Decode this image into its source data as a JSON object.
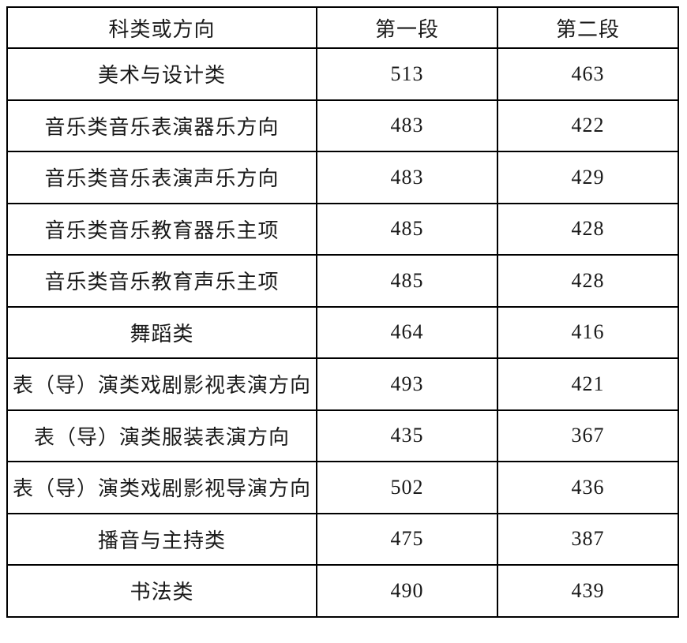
{
  "table": {
    "headers": {
      "category": "科类或方向",
      "seg1": "第一段",
      "seg2": "第二段"
    },
    "rows": [
      {
        "category": "美术与设计类",
        "seg1": "513",
        "seg2": "463"
      },
      {
        "category": "音乐类音乐表演器乐方向",
        "seg1": "483",
        "seg2": "422"
      },
      {
        "category": "音乐类音乐表演声乐方向",
        "seg1": "483",
        "seg2": "429"
      },
      {
        "category": "音乐类音乐教育器乐主项",
        "seg1": "485",
        "seg2": "428"
      },
      {
        "category": "音乐类音乐教育声乐主项",
        "seg1": "485",
        "seg2": "428"
      },
      {
        "category": "舞蹈类",
        "seg1": "464",
        "seg2": "416"
      },
      {
        "category": "表（导）演类戏剧影视表演方向",
        "seg1": "493",
        "seg2": "421"
      },
      {
        "category": "表（导）演类服装表演方向",
        "seg1": "435",
        "seg2": "367"
      },
      {
        "category": "表（导）演类戏剧影视导演方向",
        "seg1": "502",
        "seg2": "436"
      },
      {
        "category": "播音与主持类",
        "seg1": "475",
        "seg2": "387"
      },
      {
        "category": "书法类",
        "seg1": "490",
        "seg2": "439"
      }
    ]
  },
  "chart_data": {
    "type": "table",
    "title": "",
    "columns": [
      "科类或方向",
      "第一段",
      "第二段"
    ],
    "rows": [
      [
        "美术与设计类",
        513,
        463
      ],
      [
        "音乐类音乐表演器乐方向",
        483,
        422
      ],
      [
        "音乐类音乐表演声乐方向",
        483,
        429
      ],
      [
        "音乐类音乐教育器乐主项",
        485,
        428
      ],
      [
        "音乐类音乐教育声乐主项",
        485,
        428
      ],
      [
        "舞蹈类",
        464,
        416
      ],
      [
        "表（导）演类戏剧影视表演方向",
        493,
        421
      ],
      [
        "表（导）演类服装表演方向",
        435,
        367
      ],
      [
        "表（导）演类戏剧影视导演方向",
        502,
        436
      ],
      [
        "播音与主持类",
        475,
        387
      ],
      [
        "书法类",
        490,
        439
      ]
    ],
    "colors": {
      "border": "#000000",
      "text": "#1a1a1a",
      "background": "#ffffff"
    }
  }
}
